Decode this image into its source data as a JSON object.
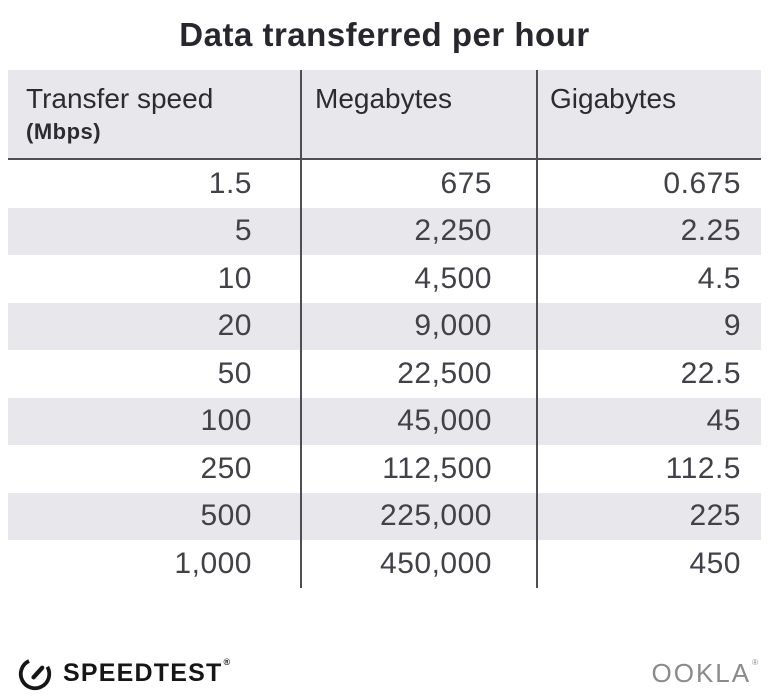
{
  "title": "Data transferred per hour",
  "table": {
    "columns": [
      {
        "label": "Transfer speed",
        "sublabel": "(Mbps)"
      },
      {
        "label": "Megabytes",
        "sublabel": ""
      },
      {
        "label": "Gigabytes",
        "sublabel": ""
      }
    ],
    "rows": [
      [
        "1.5",
        "675",
        "0.675"
      ],
      [
        "5",
        "2,250",
        "2.25"
      ],
      [
        "10",
        "4,500",
        "4.5"
      ],
      [
        "20",
        "9,000",
        "9"
      ],
      [
        "50",
        "22,500",
        "22.5"
      ],
      [
        "100",
        "45,000",
        "45"
      ],
      [
        "250",
        "112,500",
        "112.5"
      ],
      [
        "500",
        "225,000",
        "225"
      ],
      [
        "1,000",
        "450,000",
        "450"
      ]
    ]
  },
  "footer": {
    "speedtest_label": "SPEEDTEST",
    "speedtest_trademark": "®",
    "ookla_label": "OOKLA",
    "ookla_trademark": "®"
  },
  "colors": {
    "row_alt_background": "#e8e8ec",
    "header_background": "#e8e8ec",
    "divider_line": "#4f4e54",
    "title_text": "#28272d",
    "body_text": "#424147",
    "speedtest_brand": "#161616",
    "ookla_brand": "#8a8a8a"
  },
  "chart_data": {
    "type": "table",
    "title": "Data transferred per hour",
    "columns": [
      "Transfer speed (Mbps)",
      "Megabytes",
      "Gigabytes"
    ],
    "rows": [
      [
        1.5,
        675,
        0.675
      ],
      [
        5,
        2250,
        2.25
      ],
      [
        10,
        4500,
        4.5
      ],
      [
        20,
        9000,
        9
      ],
      [
        50,
        22500,
        22.5
      ],
      [
        100,
        45000,
        45
      ],
      [
        250,
        112500,
        112.5
      ],
      [
        500,
        225000,
        225
      ],
      [
        1000,
        450000,
        450
      ]
    ]
  }
}
